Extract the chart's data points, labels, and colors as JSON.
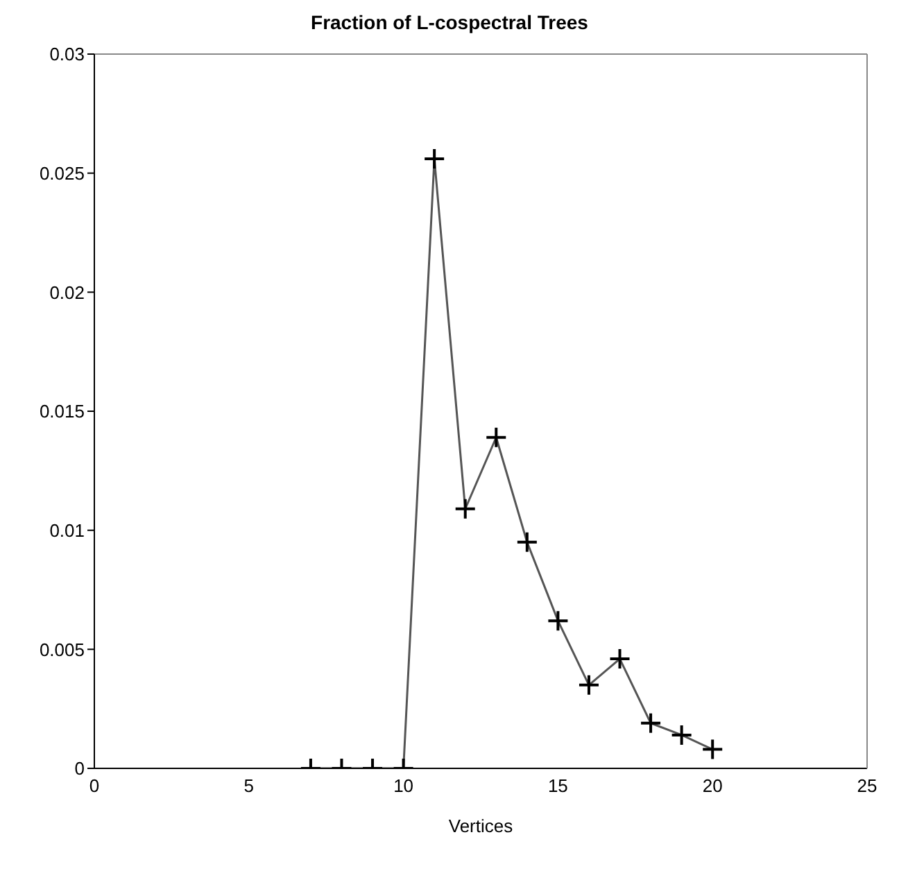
{
  "chart_data": {
    "type": "line",
    "title": "Fraction of L-cospectral Trees",
    "xlabel": "Vertices",
    "x": [
      7,
      8,
      9,
      10,
      11,
      12,
      13,
      14,
      15,
      16,
      17,
      18,
      19,
      20
    ],
    "series": [
      {
        "color": "#555555",
        "values": [
          0,
          0,
          0,
          0,
          0.0256,
          0.0109,
          0.0139,
          0.0095,
          0.0062,
          0.0035,
          0.0046,
          0.0019,
          0.0014,
          0.0008
        ]
      }
    ],
    "xlim": [
      0,
      25
    ],
    "xticks": [
      0,
      5,
      10,
      15,
      20,
      25
    ],
    "ylim": [
      0,
      0.03
    ],
    "yticks": [
      0,
      0.005,
      0.01,
      0.015,
      0.02,
      0.025,
      0.03
    ],
    "grid": false,
    "marker": "cross",
    "line_style": "solid"
  }
}
